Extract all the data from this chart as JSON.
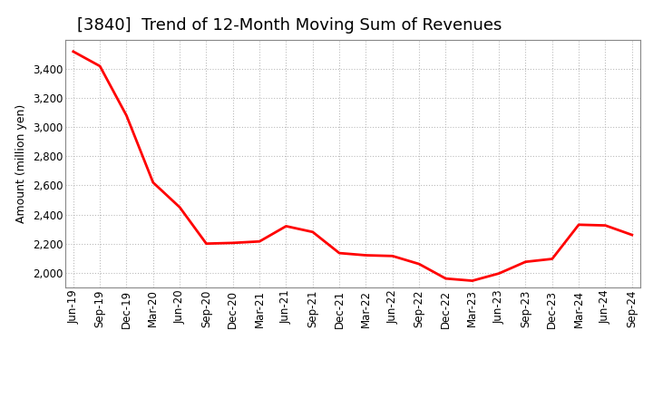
{
  "title": "[3840]  Trend of 12-Month Moving Sum of Revenues",
  "ylabel": "Amount (million yen)",
  "line_color": "#FF0000",
  "background_color": "#FFFFFF",
  "plot_bg_color": "#FFFFFF",
  "grid_color": "#AAAAAA",
  "x_labels": [
    "Jun-19",
    "Sep-19",
    "Dec-19",
    "Mar-20",
    "Jun-20",
    "Sep-20",
    "Dec-20",
    "Mar-21",
    "Jun-21",
    "Sep-21",
    "Dec-21",
    "Mar-22",
    "Jun-22",
    "Sep-22",
    "Dec-22",
    "Mar-23",
    "Jun-23",
    "Sep-23",
    "Dec-23",
    "Mar-24",
    "Jun-24",
    "Sep-24"
  ],
  "values": [
    3520,
    3420,
    3080,
    2620,
    2450,
    2200,
    2205,
    2215,
    2320,
    2280,
    2135,
    2120,
    2115,
    2060,
    1960,
    1945,
    1995,
    2075,
    2095,
    2330,
    2325,
    2260
  ],
  "ylim": [
    1900,
    3600
  ],
  "yticks": [
    2000,
    2200,
    2400,
    2600,
    2800,
    3000,
    3200,
    3400
  ],
  "title_fontsize": 13,
  "axis_fontsize": 9,
  "tick_fontsize": 8.5
}
